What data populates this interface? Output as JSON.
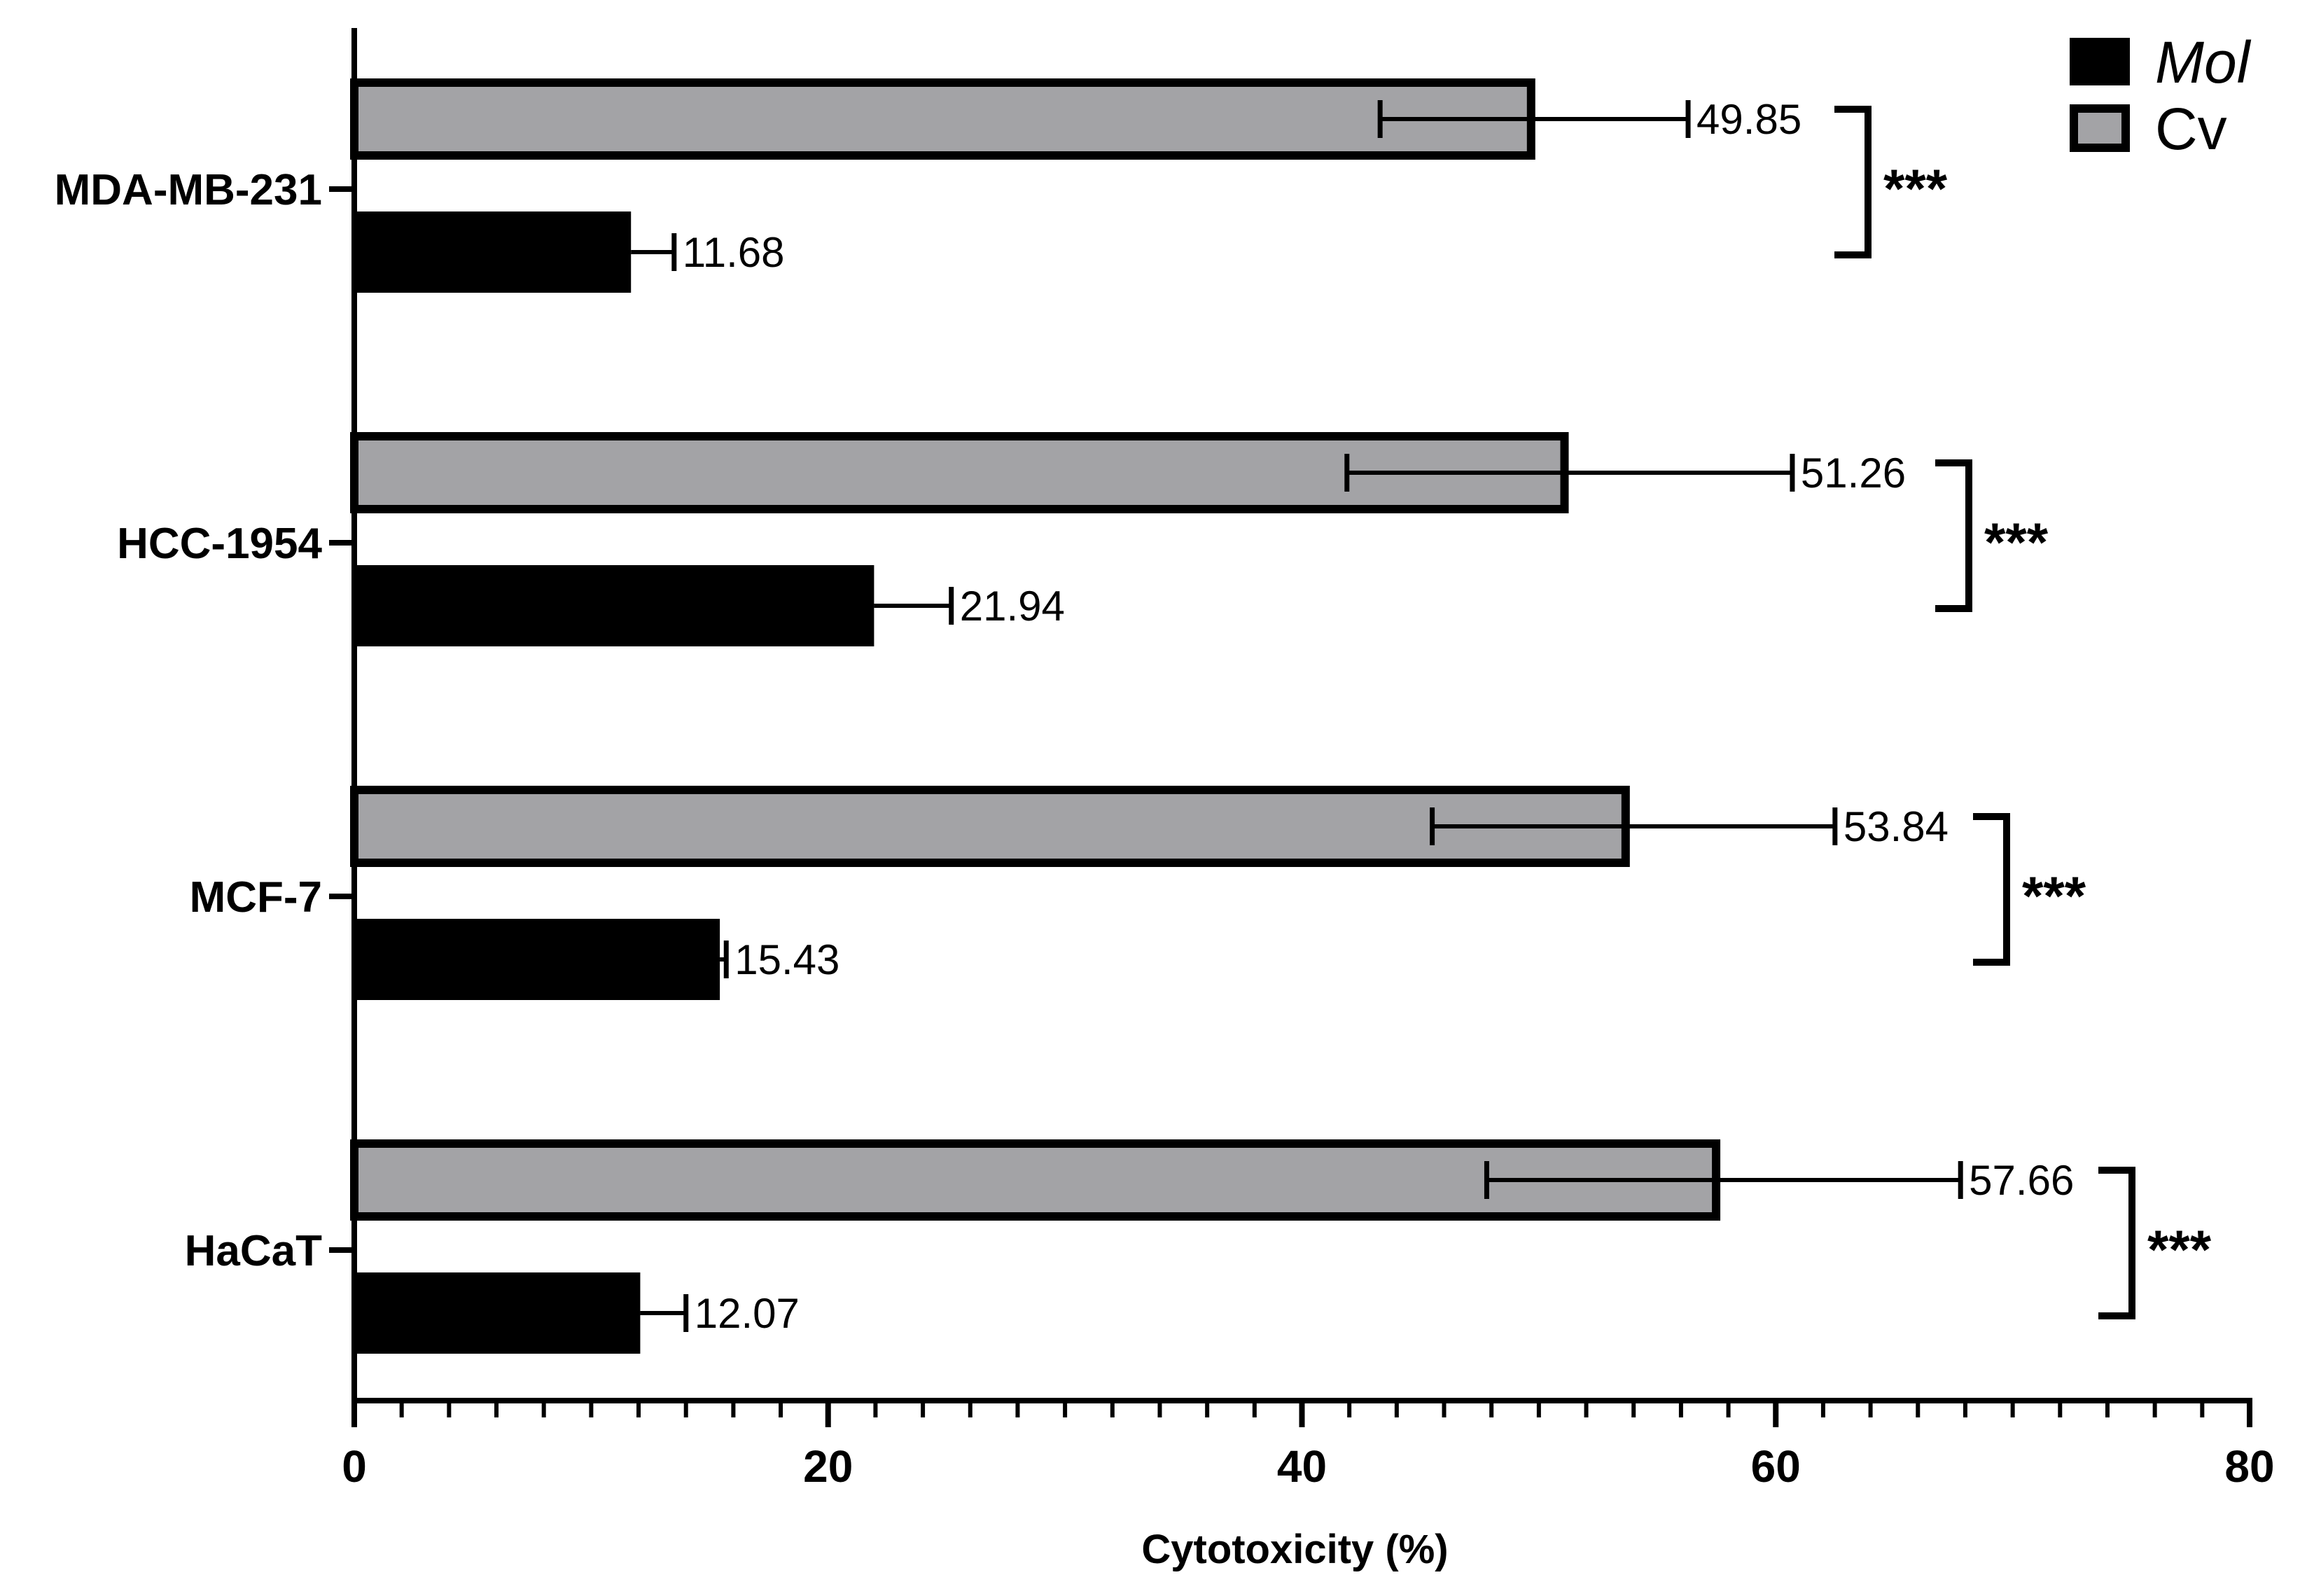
{
  "chart_data": {
    "type": "bar",
    "orientation": "horizontal",
    "categories": [
      "MDA-MB-231",
      "HCC-1954",
      "MCF-7",
      "HaCaT"
    ],
    "series": [
      {
        "name": "Cv",
        "color": "#a3a3a6",
        "values": [
          49.85,
          51.26,
          53.84,
          57.66
        ],
        "error_low": [
          43.3,
          41.9,
          45.5,
          47.8
        ],
        "error_high": [
          56.3,
          60.7,
          62.5,
          67.8
        ],
        "labels": [
          "49.85",
          "51.26",
          "53.84",
          "57.66"
        ]
      },
      {
        "name": "Mol",
        "color": "#000000",
        "values": [
          11.68,
          21.94,
          15.43,
          12.07
        ],
        "error_high": [
          13.5,
          25.2,
          15.7,
          14.0
        ],
        "labels": [
          "11.68",
          "21.94",
          "15.43",
          "12.07"
        ]
      }
    ],
    "significance": [
      "***",
      "***",
      "***",
      "***"
    ],
    "xlabel": "Cytotoxicity (%)",
    "ylabel": "",
    "xlim": [
      0,
      80
    ],
    "xticks": [
      "0",
      "20",
      "40",
      "60",
      "80"
    ],
    "minor_tick_step": 2,
    "legend": {
      "position": "top-right",
      "entries": [
        {
          "label": "Mol",
          "italic": true,
          "color": "#000000"
        },
        {
          "label": "Cv",
          "italic": false,
          "color": "#a3a3a6"
        }
      ]
    },
    "grid": false
  }
}
